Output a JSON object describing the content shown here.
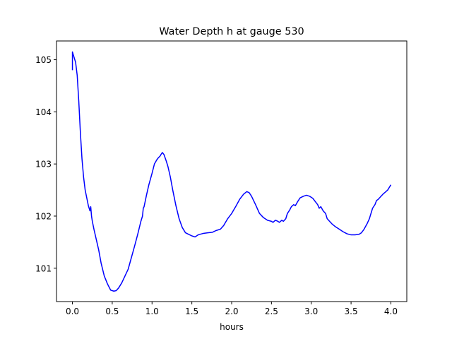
{
  "chart_data": {
    "type": "line",
    "title": "Water Depth h at gauge 530",
    "xlabel": "hours",
    "ylabel": "",
    "xlim": [
      -0.2,
      4.2
    ],
    "ylim": [
      100.36,
      105.36
    ],
    "xticks": [
      0.0,
      0.5,
      1.0,
      1.5,
      2.0,
      2.5,
      3.0,
      3.5,
      4.0
    ],
    "xtick_labels": [
      "0.0",
      "0.5",
      "1.0",
      "1.5",
      "2.0",
      "2.5",
      "3.0",
      "3.5",
      "4.0"
    ],
    "yticks": [
      101,
      102,
      103,
      104,
      105
    ],
    "ytick_labels": [
      "101",
      "102",
      "103",
      "104",
      "105"
    ],
    "grid": false,
    "series": [
      {
        "color": "#0000ff",
        "x": [
          0.0,
          0.0,
          0.01,
          0.02,
          0.04,
          0.06,
          0.08,
          0.1,
          0.12,
          0.14,
          0.16,
          0.18,
          0.2,
          0.22,
          0.23,
          0.24,
          0.25,
          0.27,
          0.3,
          0.33,
          0.36,
          0.4,
          0.44,
          0.48,
          0.52,
          0.55,
          0.58,
          0.62,
          0.66,
          0.7,
          0.74,
          0.78,
          0.82,
          0.86,
          0.88,
          0.89,
          0.9,
          0.93,
          0.96,
          1.0,
          1.03,
          1.06,
          1.08,
          1.1,
          1.12,
          1.13,
          1.15,
          1.18,
          1.2,
          1.23,
          1.26,
          1.3,
          1.34,
          1.38,
          1.42,
          1.46,
          1.5,
          1.54,
          1.58,
          1.6,
          1.65,
          1.7,
          1.76,
          1.8,
          1.86,
          1.9,
          1.95,
          2.0,
          2.05,
          2.1,
          2.15,
          2.19,
          2.22,
          2.25,
          2.3,
          2.35,
          2.4,
          2.45,
          2.5,
          2.52,
          2.55,
          2.58,
          2.6,
          2.63,
          2.65,
          2.68,
          2.7,
          2.73,
          2.75,
          2.78,
          2.8,
          2.83,
          2.86,
          2.9,
          2.94,
          2.98,
          3.02,
          3.05,
          3.08,
          3.1,
          3.12,
          3.15,
          3.18,
          3.2,
          3.23,
          3.26,
          3.3,
          3.35,
          3.4,
          3.45,
          3.5,
          3.55,
          3.6,
          3.63,
          3.66,
          3.7,
          3.73,
          3.75,
          3.77,
          3.8,
          3.82,
          3.84,
          3.87,
          3.9,
          3.93,
          3.96,
          3.98,
          4.0
        ],
        "y": [
          104.8,
          105.15,
          105.1,
          105.05,
          104.95,
          104.7,
          104.2,
          103.6,
          103.1,
          102.75,
          102.5,
          102.35,
          102.2,
          102.1,
          102.18,
          102.0,
          101.9,
          101.75,
          101.55,
          101.35,
          101.1,
          100.85,
          100.7,
          100.58,
          100.56,
          100.57,
          100.62,
          100.72,
          100.85,
          100.98,
          101.2,
          101.42,
          101.65,
          101.9,
          102.0,
          102.15,
          102.18,
          102.4,
          102.6,
          102.82,
          103.0,
          103.08,
          103.12,
          103.15,
          103.2,
          103.22,
          103.18,
          103.05,
          102.95,
          102.75,
          102.5,
          102.2,
          101.95,
          101.78,
          101.68,
          101.65,
          101.62,
          101.6,
          101.64,
          101.65,
          101.67,
          101.68,
          101.69,
          101.72,
          101.75,
          101.82,
          101.95,
          102.05,
          102.18,
          102.32,
          102.42,
          102.47,
          102.45,
          102.38,
          102.22,
          102.05,
          101.97,
          101.92,
          101.9,
          101.88,
          101.92,
          101.9,
          101.88,
          101.92,
          101.9,
          101.95,
          102.05,
          102.12,
          102.18,
          102.22,
          102.2,
          102.28,
          102.35,
          102.38,
          102.4,
          102.38,
          102.34,
          102.28,
          102.22,
          102.15,
          102.18,
          102.1,
          102.05,
          101.95,
          101.9,
          101.85,
          101.8,
          101.75,
          101.7,
          101.66,
          101.64,
          101.64,
          101.65,
          101.68,
          101.74,
          101.85,
          101.95,
          102.05,
          102.15,
          102.22,
          102.3,
          102.32,
          102.37,
          102.42,
          102.46,
          102.5,
          102.55,
          102.6
        ]
      }
    ]
  }
}
